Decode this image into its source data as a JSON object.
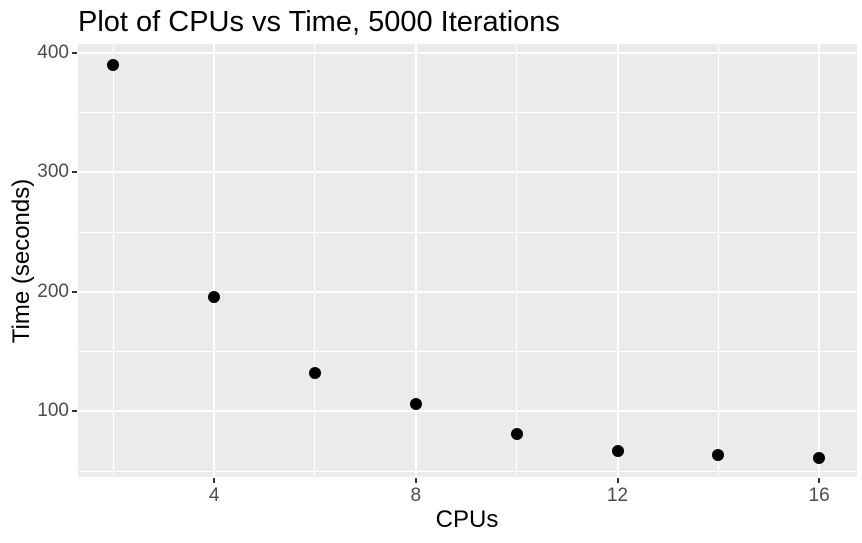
{
  "chart_data": {
    "type": "scatter",
    "title": "Plot of CPUs vs Time, 5000 Iterations",
    "xlabel": "CPUs",
    "ylabel": "Time (seconds)",
    "points": [
      {
        "x": 2,
        "y": 390
      },
      {
        "x": 4,
        "y": 196
      },
      {
        "x": 6,
        "y": 132
      },
      {
        "x": 8,
        "y": 106
      },
      {
        "x": 10,
        "y": 81
      },
      {
        "x": 12,
        "y": 67
      },
      {
        "x": 14,
        "y": 63
      },
      {
        "x": 16,
        "y": 61
      }
    ],
    "xlim": [
      1.3,
      16.75
    ],
    "ylim": [
      45,
      407.5
    ],
    "x_major_ticks": [
      4,
      8,
      12,
      16
    ],
    "x_minor_gridlines": [
      2,
      6,
      10,
      14
    ],
    "y_major_ticks": [
      100,
      200,
      300,
      400
    ],
    "y_minor_gridlines": [
      50,
      150,
      250,
      350
    ],
    "grid": "on",
    "legend": "none",
    "style": {
      "page_background": "#FFFFFF",
      "panel_background": "#EBEBEB",
      "gridline_color": "#FFFFFF",
      "point_color": "#000000",
      "tick_label_color": "#4D4D4D",
      "tick_mark_color": "#333333",
      "title_color": "#000000",
      "axis_title_color": "#000000"
    }
  }
}
